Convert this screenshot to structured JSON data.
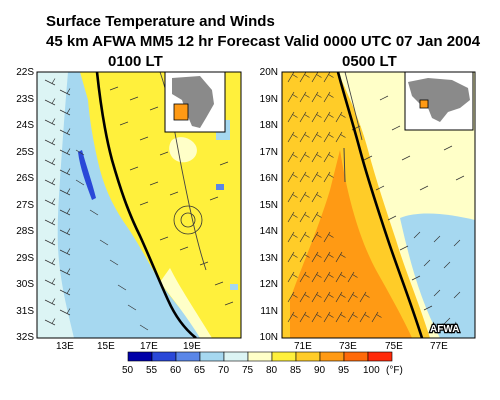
{
  "header": {
    "title_line1": "Surface Temperature and Winds",
    "title_line2": "45 km AFWA MM5 12 hr Forecast Valid 0000 UTC  07 Jan 2004"
  },
  "left_panel": {
    "local_time": "0100 LT",
    "lat_labels": [
      "22S",
      "23S",
      "24S",
      "25S",
      "26S",
      "27S",
      "28S",
      "29S",
      "30S",
      "31S",
      "32S"
    ],
    "lon_labels": [
      "13E",
      "15E",
      "17E",
      "19E"
    ]
  },
  "right_panel": {
    "local_time": "0500 LT",
    "lat_labels": [
      "20N",
      "19N",
      "18N",
      "17N",
      "16N",
      "15N",
      "14N",
      "13N",
      "12N",
      "11N",
      "10N"
    ],
    "lon_labels": [
      "71E",
      "73E",
      "75E",
      "77E"
    ],
    "credit": "AFWA"
  },
  "colorbar": {
    "labels": [
      "50",
      "55",
      "60",
      "65",
      "70",
      "75",
      "80",
      "85",
      "90",
      "95",
      "100"
    ],
    "unit": "(°F)",
    "colors": [
      "#0000a8",
      "#2a48d8",
      "#5a86e8",
      "#a6d8f0",
      "#dcf4f4",
      "#ffffc8",
      "#fff03c",
      "#ffcc28",
      "#ff9a14",
      "#ff6a0a",
      "#ff2a0a"
    ]
  }
}
